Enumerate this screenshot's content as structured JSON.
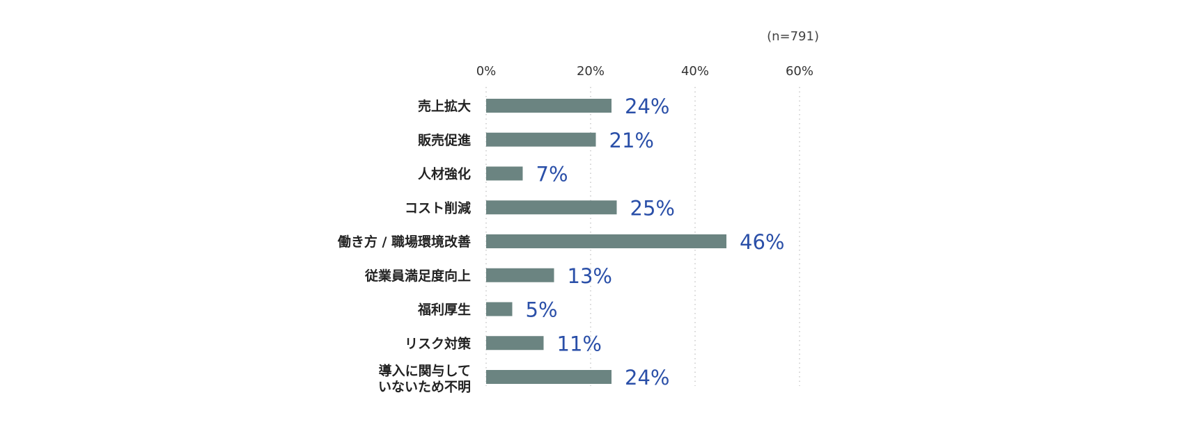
{
  "chart_data": {
    "type": "bar",
    "orientation": "horizontal",
    "sample_note": "(n=791)",
    "categories": [
      [
        "売上拡大"
      ],
      [
        "販売促進"
      ],
      [
        "人材強化"
      ],
      [
        "コスト削減"
      ],
      [
        "働き方 / 職場環境改善"
      ],
      [
        "従業員満足度向上"
      ],
      [
        "福利厚生"
      ],
      [
        "リスク対策"
      ],
      [
        "導入に関与して",
        "いないため不明"
      ]
    ],
    "values": [
      24,
      21,
      7,
      25,
      46,
      13,
      5,
      11,
      24
    ],
    "value_suffix": "%",
    "xlim": [
      0,
      60
    ],
    "xticks": [
      "0%",
      "20%",
      "40%",
      "60%"
    ],
    "xtick_values": [
      0,
      20,
      40,
      60
    ],
    "grid": "vertical-dotted",
    "colors": {
      "bar": "#6b8481",
      "value_label": "#2a4fa8",
      "grid": "#bbbbbb"
    }
  }
}
